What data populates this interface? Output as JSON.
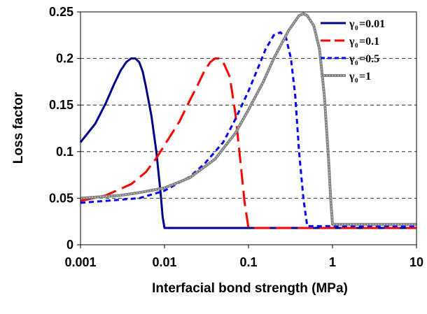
{
  "chart_data": {
    "type": "line",
    "xlabel": "Interfacial bond strength (MPa)",
    "ylabel": "Loss factor",
    "xscale": "log",
    "xlim": [
      0.001,
      10
    ],
    "ylim": [
      0,
      0.25
    ],
    "x_ticks": [
      "0.001",
      "0.01",
      "0.1",
      "1",
      "10"
    ],
    "y_ticks": [
      "0",
      "0.05",
      "0.1",
      "0.15",
      "0.2",
      "0.25"
    ],
    "grid": "horizontal dashed",
    "legend_position": "top-right",
    "legend_symbol": "γ",
    "legend_subscript": "0",
    "series": [
      {
        "name": "=0.01",
        "color": "#00008B",
        "style": "solid",
        "points": [
          [
            0.001,
            0.11
          ],
          [
            0.0015,
            0.13
          ],
          [
            0.002,
            0.152
          ],
          [
            0.0025,
            0.172
          ],
          [
            0.003,
            0.187
          ],
          [
            0.0035,
            0.196
          ],
          [
            0.004,
            0.2
          ],
          [
            0.0045,
            0.2
          ],
          [
            0.005,
            0.196
          ],
          [
            0.0055,
            0.186
          ],
          [
            0.006,
            0.17
          ],
          [
            0.007,
            0.138
          ],
          [
            0.008,
            0.1
          ],
          [
            0.009,
            0.055
          ],
          [
            0.0095,
            0.03
          ],
          [
            0.01,
            0.018
          ],
          [
            10,
            0.018
          ]
        ]
      },
      {
        "name": "=0.1",
        "color": "#FF0000",
        "style": "long-dash",
        "points": [
          [
            0.001,
            0.047
          ],
          [
            0.002,
            0.053
          ],
          [
            0.004,
            0.065
          ],
          [
            0.006,
            0.078
          ],
          [
            0.008,
            0.093
          ],
          [
            0.01,
            0.107
          ],
          [
            0.015,
            0.132
          ],
          [
            0.02,
            0.155
          ],
          [
            0.025,
            0.172
          ],
          [
            0.03,
            0.187
          ],
          [
            0.035,
            0.196
          ],
          [
            0.04,
            0.2
          ],
          [
            0.045,
            0.2
          ],
          [
            0.05,
            0.196
          ],
          [
            0.06,
            0.18
          ],
          [
            0.07,
            0.14
          ],
          [
            0.08,
            0.09
          ],
          [
            0.09,
            0.045
          ],
          [
            0.1,
            0.018
          ],
          [
            10,
            0.018
          ]
        ]
      },
      {
        "name": "=0.5",
        "color": "#0000FF",
        "style": "short-dash",
        "points": [
          [
            0.001,
            0.045
          ],
          [
            0.005,
            0.05
          ],
          [
            0.01,
            0.058
          ],
          [
            0.02,
            0.073
          ],
          [
            0.03,
            0.087
          ],
          [
            0.05,
            0.11
          ],
          [
            0.07,
            0.135
          ],
          [
            0.1,
            0.165
          ],
          [
            0.13,
            0.19
          ],
          [
            0.16,
            0.21
          ],
          [
            0.2,
            0.225
          ],
          [
            0.24,
            0.228
          ],
          [
            0.28,
            0.222
          ],
          [
            0.32,
            0.2
          ],
          [
            0.36,
            0.16
          ],
          [
            0.4,
            0.1
          ],
          [
            0.45,
            0.05
          ],
          [
            0.5,
            0.02
          ],
          [
            10,
            0.02
          ]
        ]
      },
      {
        "name": "=1",
        "color": "#808080",
        "style": "solid-thick",
        "points": [
          [
            0.001,
            0.05
          ],
          [
            0.003,
            0.053
          ],
          [
            0.005,
            0.056
          ],
          [
            0.01,
            0.061
          ],
          [
            0.02,
            0.072
          ],
          [
            0.04,
            0.092
          ],
          [
            0.07,
            0.12
          ],
          [
            0.1,
            0.145
          ],
          [
            0.15,
            0.175
          ],
          [
            0.2,
            0.2
          ],
          [
            0.3,
            0.23
          ],
          [
            0.4,
            0.246
          ],
          [
            0.45,
            0.248
          ],
          [
            0.5,
            0.246
          ],
          [
            0.6,
            0.235
          ],
          [
            0.7,
            0.21
          ],
          [
            0.8,
            0.16
          ],
          [
            0.9,
            0.09
          ],
          [
            0.95,
            0.05
          ],
          [
            1,
            0.022
          ],
          [
            10,
            0.022
          ]
        ]
      }
    ]
  }
}
